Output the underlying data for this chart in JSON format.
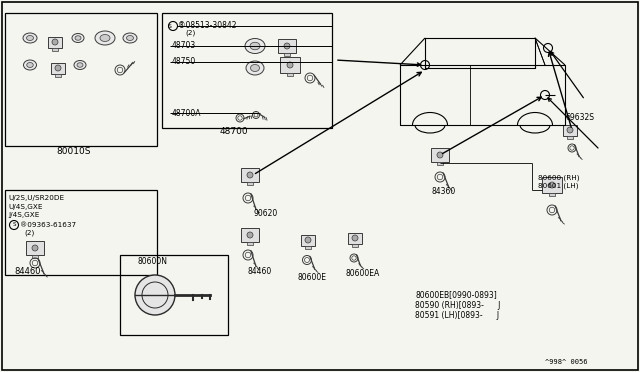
{
  "bg_color": "#f5f5f0",
  "border_color": "#000000",
  "text_color": "#000000",
  "diagram_code": "^998^ 0056",
  "figsize": [
    6.4,
    3.72
  ],
  "dpi": 100,
  "labels": {
    "main_box": "80010S",
    "steering_box": "48700",
    "part_08513": "®08513-30842",
    "part_48703": "48703",
    "part_48750": "48750",
    "part_48700A": "48700A",
    "part_90620": "90620",
    "part_84460": "84460",
    "part_80600E": "80600E",
    "part_80600EA": "80600EA",
    "part_84360": "84360",
    "part_69632S": "69632S",
    "part_80600RH": "80600 (RH)",
    "part_80601LH": "80601 (LH)",
    "part_80600N": "80600N",
    "part_80600EB": "80600EB[0990-0893]",
    "part_80590": "80590 (RH)[0893-      J",
    "part_80591": "80591 (LH)[0893-      J",
    "ll_line1": "U/2S,U/SR20DE",
    "ll_line2": "U/4S,GXE",
    "ll_line3": "J/4S,GXE",
    "ll_part": "®09363-61637",
    "ll_note": "(2)",
    "ll_label": "84460",
    "note2": "(2)"
  }
}
